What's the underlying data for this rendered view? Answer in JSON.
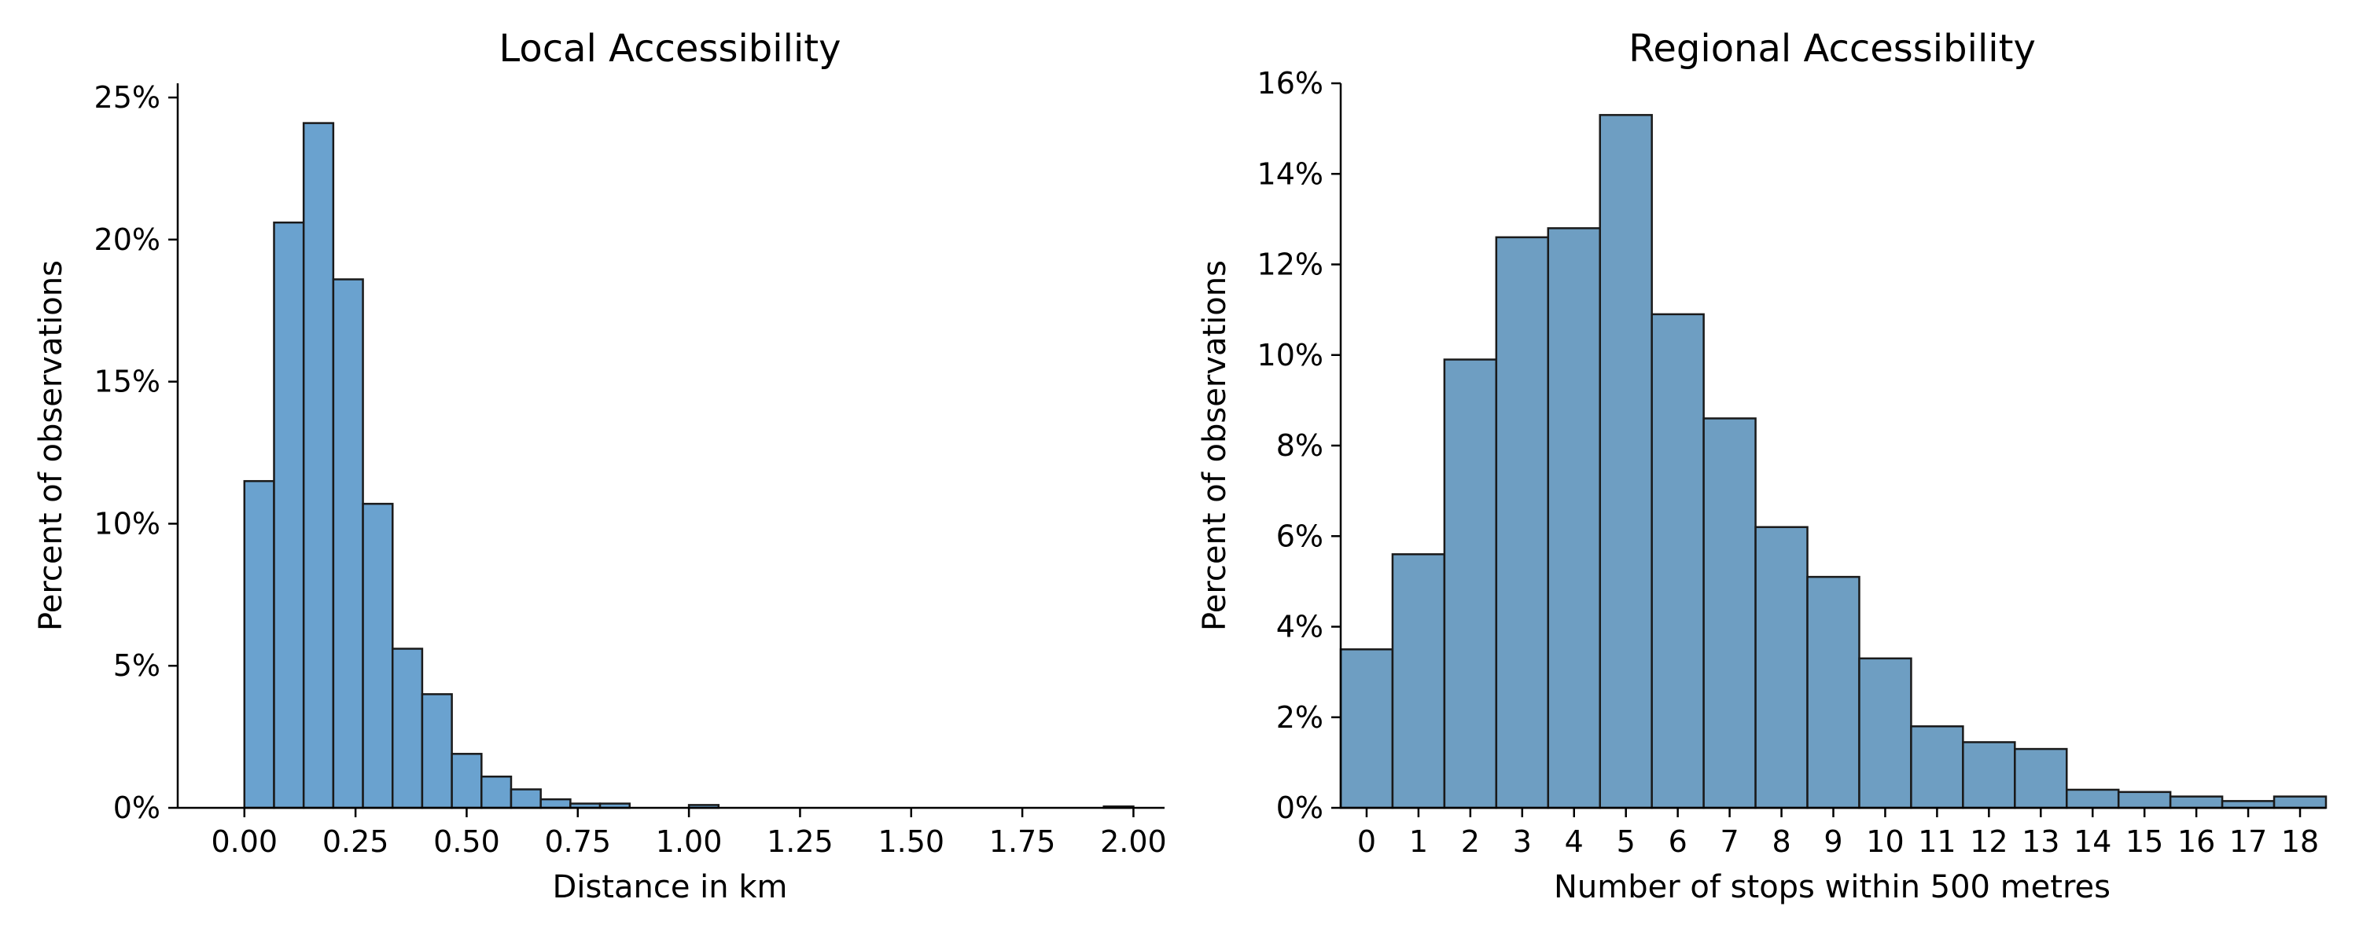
{
  "colors": {
    "local_fill": "#6aa2cf",
    "regional_fill": "#6e9ec2",
    "edge": "#1a1a1a",
    "axis": "#000000",
    "background": "#ffffff"
  },
  "chart_data": [
    {
      "type": "bar",
      "title": "Local Accessibility",
      "xlabel": "Distance in km",
      "ylabel": "Percent of observations",
      "xlim": [
        -0.15,
        2.07
      ],
      "ylim": [
        0,
        25.5
      ],
      "xticks": [
        0,
        0.25,
        0.5,
        0.75,
        1.0,
        1.25,
        1.5,
        1.75,
        2.0
      ],
      "xtick_labels": [
        "0.00",
        "0.25",
        "0.50",
        "0.75",
        "1.00",
        "1.25",
        "1.50",
        "1.75",
        "2.00"
      ],
      "yticks": [
        0,
        5,
        10,
        15,
        20,
        25
      ],
      "ytick_labels": [
        "0%",
        "5%",
        "10%",
        "15%",
        "20%",
        "25%"
      ],
      "bin_width": 0.0667,
      "bin_starts": [
        0.0,
        0.0667,
        0.1333,
        0.2,
        0.2667,
        0.3333,
        0.4,
        0.4667,
        0.5333,
        0.6,
        0.6667,
        0.7333,
        0.8,
        0.8667,
        0.9333,
        1.0,
        1.0667,
        1.1333,
        1.2,
        1.2667,
        1.3333,
        1.4,
        1.4667,
        1.5333,
        1.6,
        1.6667,
        1.7333,
        1.8,
        1.8667,
        1.9333
      ],
      "values": [
        11.5,
        20.6,
        24.1,
        18.6,
        10.7,
        5.6,
        4.0,
        1.9,
        1.1,
        0.65,
        0.3,
        0.15,
        0.15,
        0.0,
        0.0,
        0.1,
        0.0,
        0.0,
        0.0,
        0.0,
        0.0,
        0.0,
        0.0,
        0.0,
        0.0,
        0.0,
        0.0,
        0.0,
        0.0,
        0.05
      ],
      "grid": false,
      "legend": "none"
    },
    {
      "type": "bar",
      "title": "Regional Accessibility",
      "xlabel": "Number of stops within 500 metres",
      "ylabel": "Percent of observations",
      "xlim": [
        -0.5,
        18.5
      ],
      "ylim": [
        0,
        16
      ],
      "categories": [
        "0",
        "1",
        "2",
        "3",
        "4",
        "5",
        "6",
        "7",
        "8",
        "9",
        "10",
        "11",
        "12",
        "13",
        "14",
        "15",
        "16",
        "17",
        "18"
      ],
      "values": [
        3.5,
        5.6,
        9.9,
        12.6,
        12.8,
        15.3,
        10.9,
        8.6,
        6.2,
        5.1,
        3.3,
        1.8,
        1.45,
        1.3,
        0.4,
        0.35,
        0.25,
        0.15,
        0.25
      ],
      "yticks": [
        0,
        2,
        4,
        6,
        8,
        10,
        12,
        14,
        16
      ],
      "ytick_labels": [
        "0%",
        "2%",
        "4%",
        "6%",
        "8%",
        "10%",
        "12%",
        "14%",
        "16%"
      ],
      "grid": false,
      "legend": "none"
    }
  ]
}
